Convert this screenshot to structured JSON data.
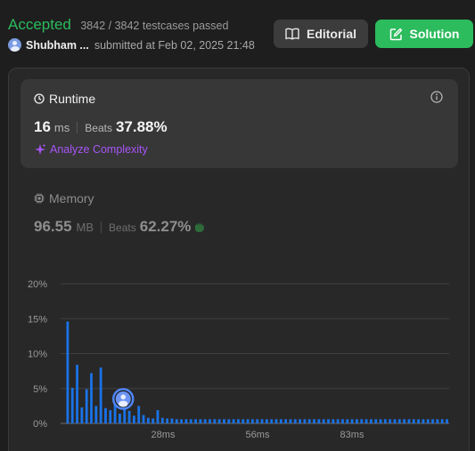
{
  "status": {
    "label": "Accepted",
    "testcases": "3842 / 3842 testcases passed",
    "user": "Shubham ...",
    "submitted": "submitted at Feb 02, 2025 21:48"
  },
  "buttons": {
    "editorial": "Editorial",
    "solution": "Solution"
  },
  "runtime": {
    "title": "Runtime",
    "value": "16",
    "unit": "ms",
    "beats_label": "Beats",
    "beats_pct": "37.88%",
    "analyze": "Analyze Complexity"
  },
  "memory": {
    "title": "Memory",
    "value": "96.55",
    "unit": "MB",
    "beats_label": "Beats",
    "beats_pct": "62.27%"
  },
  "colors": {
    "accepted": "#2cbb5d",
    "bars": "#1a73e8",
    "analyze": "#a855f7"
  },
  "chart_data": {
    "type": "bar",
    "ytick_labels": [
      "0%",
      "5%",
      "10%",
      "15%",
      "20%"
    ],
    "ylim": [
      0,
      20
    ],
    "xtick_labels": [
      "28ms",
      "56ms",
      "83ms"
    ],
    "values": [
      14.6,
      5.1,
      8.4,
      2.3,
      4.9,
      7.2,
      2.5,
      8.0,
      2.2,
      1.9,
      4.4,
      1.4,
      3.5,
      1.8,
      1.1,
      2.5,
      1.2,
      0.8,
      0.7,
      1.9,
      0.8,
      0.7,
      0.7,
      0.6,
      0.6,
      0.6,
      0.6,
      0.6,
      0.6,
      0.6,
      0.6,
      0.6,
      0.6,
      0.6,
      0.6,
      0.6,
      0.6,
      0.6,
      0.6,
      0.6,
      0.6,
      0.6,
      0.6,
      0.6,
      0.6,
      0.6,
      0.6,
      0.6,
      0.6,
      0.6,
      0.6,
      0.6,
      0.6,
      0.6,
      0.6,
      0.6,
      0.6,
      0.6,
      0.6,
      0.6,
      0.6,
      0.6,
      0.6,
      0.6,
      0.6,
      0.6,
      0.6,
      0.6,
      0.6,
      0.6,
      0.6,
      0.6,
      0.6,
      0.6,
      0.6,
      0.6,
      0.6,
      0.6,
      0.6,
      0.6,
      0.6,
      0.6,
      0.6,
      0.6,
      0.6,
      0.6
    ],
    "highlight_index": 12,
    "grid": true
  }
}
